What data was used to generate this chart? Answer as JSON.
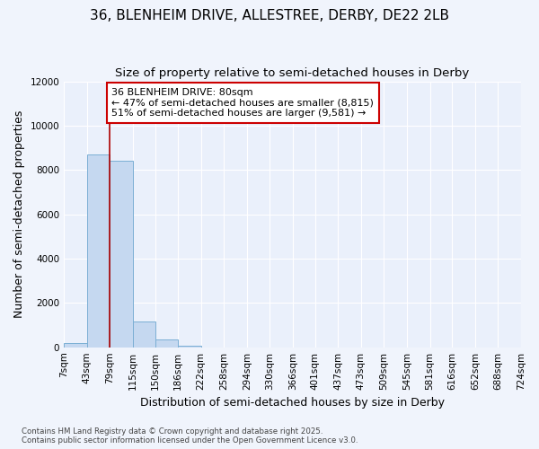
{
  "title_line1": "36, BLENHEIM DRIVE, ALLESTREE, DERBY, DE22 2LB",
  "title_line2": "Size of property relative to semi-detached houses in Derby",
  "xlabel": "Distribution of semi-detached houses by size in Derby",
  "ylabel": "Number of semi-detached properties",
  "bin_edges": [
    7,
    43,
    79,
    115,
    150,
    186,
    222,
    258,
    294,
    330,
    366,
    401,
    437,
    473,
    509,
    545,
    581,
    616,
    652,
    688,
    724
  ],
  "bar_heights": [
    200,
    8700,
    8400,
    1150,
    350,
    50,
    0,
    0,
    0,
    0,
    0,
    0,
    0,
    0,
    0,
    0,
    0,
    0,
    0,
    0
  ],
  "bar_color": "#c5d8f0",
  "bar_edge_color": "#7bafd4",
  "background_color": "#f0f4fc",
  "plot_bg_color": "#eaf0fb",
  "grid_color": "#ffffff",
  "property_size": 79,
  "red_line_color": "#aa0000",
  "annotation_text": "36 BLENHEIM DRIVE: 80sqm\n← 47% of semi-detached houses are smaller (8,815)\n51% of semi-detached houses are larger (9,581) →",
  "annotation_box_color": "#ffffff",
  "annotation_box_edge": "#cc0000",
  "ylim": [
    0,
    12000
  ],
  "yticks": [
    0,
    2000,
    4000,
    6000,
    8000,
    10000,
    12000
  ],
  "tick_labels": [
    "7sqm",
    "43sqm",
    "79sqm",
    "115sqm",
    "150sqm",
    "186sqm",
    "222sqm",
    "258sqm",
    "294sqm",
    "330sqm",
    "366sqm",
    "401sqm",
    "437sqm",
    "473sqm",
    "509sqm",
    "545sqm",
    "581sqm",
    "616sqm",
    "652sqm",
    "688sqm",
    "724sqm"
  ],
  "footnote": "Contains HM Land Registry data © Crown copyright and database right 2025.\nContains public sector information licensed under the Open Government Licence v3.0.",
  "title_fontsize": 11,
  "subtitle_fontsize": 9.5,
  "axis_label_fontsize": 9,
  "tick_fontsize": 7.5,
  "annotation_fontsize": 8
}
